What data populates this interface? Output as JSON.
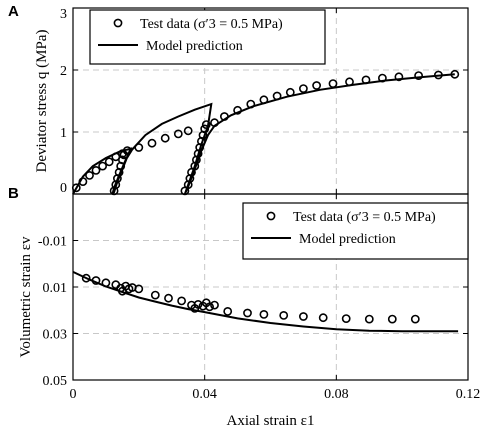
{
  "chart_data": [
    {
      "panel": "A",
      "type": "scatter",
      "ylabel": "Deviator stress q (MPa)",
      "xlabel": "",
      "xlim": [
        0,
        0.12
      ],
      "ylim": [
        0,
        3
      ],
      "xticks": [
        0,
        0.04,
        0.08,
        0.12
      ],
      "yticks": [
        0,
        1,
        2,
        3
      ],
      "ytick_labels": [
        "0",
        "1",
        "2",
        "3"
      ],
      "grid": true,
      "legend_position": "top-left",
      "series": [
        {
          "name": "Test data (σ′3 = 0.5 MPa)",
          "style": "open-circle",
          "points": [
            [
              0.001,
              0.1
            ],
            [
              0.003,
              0.2
            ],
            [
              0.005,
              0.3
            ],
            [
              0.007,
              0.38
            ],
            [
              0.009,
              0.45
            ],
            [
              0.011,
              0.52
            ],
            [
              0.013,
              0.6
            ],
            [
              0.015,
              0.65
            ],
            [
              0.0165,
              0.7
            ],
            [
              0.0125,
              0.05
            ],
            [
              0.013,
              0.15
            ],
            [
              0.0135,
              0.25
            ],
            [
              0.014,
              0.35
            ],
            [
              0.0145,
              0.45
            ],
            [
              0.015,
              0.55
            ],
            [
              0.0155,
              0.63
            ],
            [
              0.02,
              0.75
            ],
            [
              0.024,
              0.82
            ],
            [
              0.028,
              0.9
            ],
            [
              0.032,
              0.97
            ],
            [
              0.035,
              1.02
            ],
            [
              0.034,
              0.05
            ],
            [
              0.035,
              0.15
            ],
            [
              0.0355,
              0.25
            ],
            [
              0.036,
              0.35
            ],
            [
              0.037,
              0.45
            ],
            [
              0.0375,
              0.55
            ],
            [
              0.038,
              0.65
            ],
            [
              0.0385,
              0.75
            ],
            [
              0.039,
              0.85
            ],
            [
              0.0395,
              0.95
            ],
            [
              0.04,
              1.05
            ],
            [
              0.0405,
              1.12
            ],
            [
              0.043,
              1.15
            ],
            [
              0.046,
              1.25
            ],
            [
              0.05,
              1.35
            ],
            [
              0.054,
              1.45
            ],
            [
              0.058,
              1.52
            ],
            [
              0.062,
              1.58
            ],
            [
              0.066,
              1.64
            ],
            [
              0.07,
              1.7
            ],
            [
              0.074,
              1.75
            ],
            [
              0.079,
              1.78
            ],
            [
              0.084,
              1.81
            ],
            [
              0.089,
              1.84
            ],
            [
              0.094,
              1.87
            ],
            [
              0.099,
              1.89
            ],
            [
              0.105,
              1.91
            ],
            [
              0.111,
              1.92
            ],
            [
              0.116,
              1.93
            ]
          ]
        },
        {
          "name": "Model prediction",
          "style": "line",
          "points": [
            [
              0,
              0
            ],
            [
              0.003,
              0.28
            ],
            [
              0.006,
              0.45
            ],
            [
              0.01,
              0.58
            ],
            [
              0.014,
              0.68
            ],
            [
              0.0175,
              0.73
            ],
            [
              0.0165,
              0.6
            ],
            [
              0.015,
              0.4
            ],
            [
              0.0135,
              0.2
            ],
            [
              0.0125,
              0.03
            ],
            [
              0.012,
              0
            ],
            [
              0.0125,
              0.1
            ],
            [
              0.014,
              0.3
            ],
            [
              0.016,
              0.55
            ],
            [
              0.018,
              0.72
            ],
            [
              0.022,
              0.95
            ],
            [
              0.027,
              1.13
            ],
            [
              0.032,
              1.25
            ],
            [
              0.037,
              1.36
            ],
            [
              0.042,
              1.45
            ],
            [
              0.041,
              1.1
            ],
            [
              0.039,
              0.8
            ],
            [
              0.037,
              0.45
            ],
            [
              0.035,
              0.15
            ],
            [
              0.034,
              0
            ],
            [
              0.035,
              0.12
            ],
            [
              0.037,
              0.4
            ],
            [
              0.039,
              0.7
            ],
            [
              0.041,
              0.95
            ],
            [
              0.043,
              1.1
            ],
            [
              0.048,
              1.27
            ],
            [
              0.055,
              1.42
            ],
            [
              0.065,
              1.57
            ],
            [
              0.075,
              1.68
            ],
            [
              0.085,
              1.76
            ],
            [
              0.095,
              1.83
            ],
            [
              0.105,
              1.88
            ],
            [
              0.116,
              1.93
            ]
          ]
        }
      ]
    },
    {
      "panel": "B",
      "type": "scatter",
      "xlabel": "Axial strain ε1",
      "ylabel": "Volumetric strain εv",
      "xlim": [
        0,
        0.12
      ],
      "ylim": [
        -0.03,
        0.05
      ],
      "y_inverted": true,
      "xticks": [
        0,
        0.04,
        0.08,
        0.12
      ],
      "xtick_labels": [
        "0",
        "0.04",
        "0.08",
        "0.12"
      ],
      "yticks": [
        -0.01,
        0.01,
        0.03,
        0.05
      ],
      "ytick_labels": [
        "-0.01",
        "0.01",
        "0.03",
        "0.05"
      ],
      "grid": true,
      "legend_position": "top-right",
      "series": [
        {
          "name": "Test data (σ′3 = 0.5 MPa)",
          "style": "open-circle",
          "points": [
            [
              0.004,
              0.0062
            ],
            [
              0.007,
              0.0072
            ],
            [
              0.01,
              0.0082
            ],
            [
              0.013,
              0.009
            ],
            [
              0.0145,
              0.0105
            ],
            [
              0.015,
              0.0118
            ],
            [
              0.016,
              0.0096
            ],
            [
              0.017,
              0.0108
            ],
            [
              0.018,
              0.0102
            ],
            [
              0.02,
              0.0108
            ],
            [
              0.025,
              0.0135
            ],
            [
              0.029,
              0.0148
            ],
            [
              0.033,
              0.016
            ],
            [
              0.036,
              0.0178
            ],
            [
              0.037,
              0.0192
            ],
            [
              0.038,
              0.0175
            ],
            [
              0.0395,
              0.0182
            ],
            [
              0.0405,
              0.0168
            ],
            [
              0.0415,
              0.0185
            ],
            [
              0.043,
              0.0178
            ],
            [
              0.047,
              0.0205
            ],
            [
              0.053,
              0.0212
            ],
            [
              0.058,
              0.0218
            ],
            [
              0.064,
              0.0222
            ],
            [
              0.07,
              0.0227
            ],
            [
              0.076,
              0.0232
            ],
            [
              0.083,
              0.0236
            ],
            [
              0.09,
              0.0238
            ],
            [
              0.097,
              0.0238
            ],
            [
              0.104,
              0.0238
            ]
          ]
        },
        {
          "name": "Model prediction",
          "style": "line",
          "points": [
            [
              0,
              0.0035
            ],
            [
              0.005,
              0.0068
            ],
            [
              0.01,
              0.0098
            ],
            [
              0.015,
              0.0122
            ],
            [
              0.02,
              0.0145
            ],
            [
              0.025,
              0.0163
            ],
            [
              0.03,
              0.018
            ],
            [
              0.035,
              0.0195
            ],
            [
              0.04,
              0.0208
            ],
            [
              0.05,
              0.0235
            ],
            [
              0.06,
              0.0255
            ],
            [
              0.07,
              0.027
            ],
            [
              0.08,
              0.0282
            ],
            [
              0.09,
              0.0288
            ],
            [
              0.1,
              0.029
            ],
            [
              0.117,
              0.029
            ]
          ]
        }
      ]
    }
  ]
}
